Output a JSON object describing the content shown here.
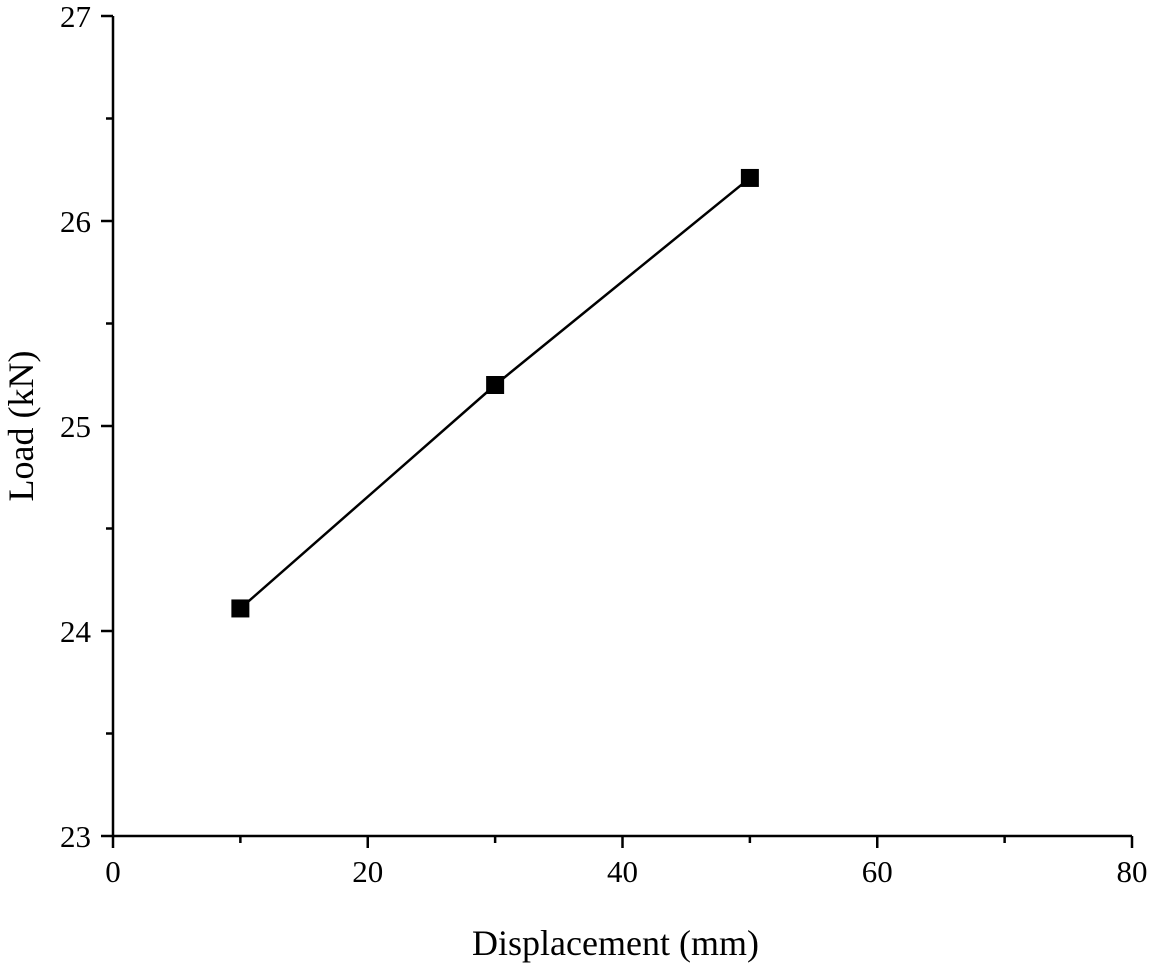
{
  "chart_data": {
    "type": "line",
    "title": "",
    "xlabel": "Displacement (mm)",
    "ylabel": "Load (kN)",
    "xlim": [
      0,
      80
    ],
    "ylim": [
      23,
      27
    ],
    "xticks": [
      0,
      20,
      40,
      60,
      80
    ],
    "xtick_labels": [
      "0",
      "20",
      "40",
      "60",
      "80"
    ],
    "yticks": [
      23,
      24,
      25,
      26,
      27
    ],
    "ytick_labels": [
      "23",
      "24",
      "25",
      "26",
      "27"
    ],
    "x_minor_ticks": [
      10,
      30,
      50,
      70
    ],
    "y_minor_ticks": [
      23.5,
      24.5,
      25.5,
      26.5
    ],
    "grid": false,
    "legend": "none",
    "series": [
      {
        "marker": "square",
        "color": "#000000",
        "x": [
          10,
          30,
          50
        ],
        "y": [
          24.11,
          25.2,
          26.21
        ]
      }
    ]
  }
}
